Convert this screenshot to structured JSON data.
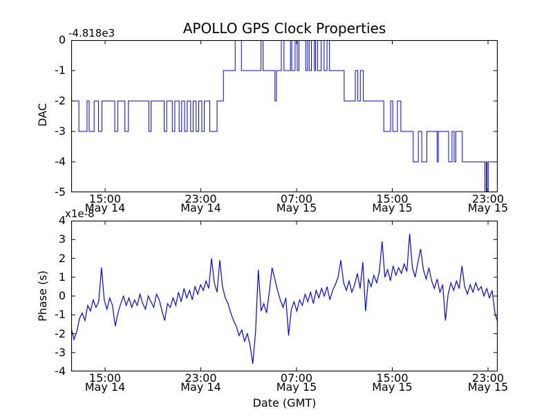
{
  "figure": {
    "title": "APOLLO GPS Clock Properties",
    "background": "#ffffff",
    "frame_color": "#000000"
  },
  "x_axis": {
    "label": "Date (GMT)",
    "range_hours_from_may14_0000": [
      12.17,
      47.81
    ],
    "ticks": [
      {
        "hour": 15,
        "time": "15:00",
        "date": "May 14"
      },
      {
        "hour": 23,
        "time": "23:00",
        "date": "May 14"
      },
      {
        "hour": 31,
        "time": "07:00",
        "date": "May 15"
      },
      {
        "hour": 39,
        "time": "15:00",
        "date": "May 15"
      },
      {
        "hour": 47,
        "time": "23:00",
        "date": "May 15"
      }
    ]
  },
  "chart_data": [
    {
      "type": "line",
      "style": "step",
      "series_name": "DAC",
      "ylabel": "DAC",
      "offset_text": "-4.818e3",
      "ylim": [
        -5,
        0
      ],
      "yticks": [
        0,
        -1,
        -2,
        -3,
        -4,
        -5
      ],
      "line_color": "#0000ff",
      "x_hours_range": [
        12.17,
        47.81
      ],
      "steps_hour_value": [
        [
          12.17,
          -2
        ],
        [
          12.81,
          -3
        ],
        [
          13.49,
          -2
        ],
        [
          13.67,
          -3
        ],
        [
          14.09,
          -2
        ],
        [
          14.45,
          -3
        ],
        [
          14.74,
          -2
        ],
        [
          15.81,
          -3
        ],
        [
          16.05,
          -2
        ],
        [
          16.66,
          -3
        ],
        [
          16.95,
          -2
        ],
        [
          18.66,
          -3
        ],
        [
          18.84,
          -2
        ],
        [
          19.94,
          -3
        ],
        [
          20.15,
          -2
        ],
        [
          20.62,
          -3
        ],
        [
          20.83,
          -2
        ],
        [
          21.19,
          -3
        ],
        [
          21.4,
          -2
        ],
        [
          21.65,
          -3
        ],
        [
          21.86,
          -2
        ],
        [
          22.15,
          -3
        ],
        [
          22.36,
          -2
        ],
        [
          22.61,
          -3
        ],
        [
          22.83,
          -2
        ],
        [
          23.08,
          -3
        ],
        [
          23.29,
          -2
        ],
        [
          23.75,
          -3
        ],
        [
          24.36,
          -2
        ],
        [
          24.89,
          -1
        ],
        [
          25.87,
          0
        ],
        [
          26.4,
          -1
        ],
        [
          28.03,
          0
        ],
        [
          28.2,
          -1
        ],
        [
          29.2,
          -2
        ],
        [
          29.32,
          -1
        ],
        [
          29.73,
          0
        ],
        [
          29.95,
          -1
        ],
        [
          30.49,
          0
        ],
        [
          30.6,
          -1
        ],
        [
          30.88,
          0
        ],
        [
          31.06,
          -1
        ],
        [
          31.2,
          0
        ],
        [
          31.77,
          -1
        ],
        [
          31.92,
          0
        ],
        [
          32.06,
          -1
        ],
        [
          32.24,
          0
        ],
        [
          32.49,
          -1
        ],
        [
          32.59,
          0
        ],
        [
          32.77,
          -1
        ],
        [
          33.06,
          0
        ],
        [
          33.3,
          -1
        ],
        [
          33.55,
          0
        ],
        [
          33.75,
          -1
        ],
        [
          34.98,
          -2
        ],
        [
          35.91,
          -1
        ],
        [
          36.12,
          -2
        ],
        [
          36.33,
          -1
        ],
        [
          36.58,
          -2
        ],
        [
          38.29,
          -3
        ],
        [
          38.86,
          -2
        ],
        [
          39.04,
          -3
        ],
        [
          39.43,
          -2
        ],
        [
          39.72,
          -3
        ],
        [
          40.75,
          -4
        ],
        [
          41.18,
          -3
        ],
        [
          41.46,
          -4
        ],
        [
          41.89,
          -3
        ],
        [
          42.75,
          -4
        ],
        [
          42.85,
          -3
        ],
        [
          43.71,
          -4
        ],
        [
          43.99,
          -3
        ],
        [
          44.17,
          -4
        ],
        [
          44.31,
          -3
        ],
        [
          44.85,
          -4
        ],
        [
          46.74,
          -5
        ],
        [
          46.85,
          -4
        ],
        [
          46.92,
          -5
        ],
        [
          47.02,
          -4
        ]
      ]
    },
    {
      "type": "line",
      "series_name": "Phase",
      "ylabel": "Phase (s)",
      "scale_text": "x1e-8",
      "ylim": [
        -4,
        4
      ],
      "yticks": [
        4,
        3,
        2,
        1,
        0,
        -1,
        -2,
        -3,
        -4
      ],
      "line_color": "#0000ff",
      "x_hours_range": [
        12.17,
        47.81
      ],
      "values_1e8_s": [
        -1.7,
        -2.3,
        -1.9,
        -1.2,
        -0.9,
        -1.3,
        -0.5,
        -0.8,
        -0.2,
        -0.6,
        -0.3,
        1.5,
        -0.2,
        -0.7,
        -0.1,
        -0.5,
        -1.6,
        -0.9,
        -0.4,
        0.0,
        -0.5,
        -0.1,
        -0.6,
        -0.2,
        -0.5,
        0.1,
        -0.4,
        -0.7,
        0.0,
        -0.3,
        -0.6,
        0.1,
        -0.2,
        -0.8,
        -1.3,
        -0.4,
        -0.6,
        -0.1,
        -0.5,
        0.2,
        -0.3,
        0.4,
        -0.1,
        0.3,
        -0.2,
        0.5,
        0.1,
        0.6,
        0.3,
        0.8,
        0.4,
        2.0,
        0.7,
        0.2,
        1.9,
        0.5,
        -0.1,
        -0.4,
        -0.9,
        -1.3,
        -1.6,
        -2.1,
        -1.8,
        -2.4,
        -2.0,
        -2.6,
        -3.6,
        -1.9,
        1.4,
        -0.8,
        -0.4,
        -0.9,
        0.2,
        1.5,
        0.9,
        0.3,
        -0.2,
        -0.6,
        -0.1,
        -2.1,
        -0.7,
        -0.3,
        -0.8,
        -0.2,
        -0.5,
        0.1,
        -0.3,
        0.2,
        -0.4,
        0.3,
        -0.1,
        0.4,
        0.0,
        0.5,
        -0.2,
        0.3,
        0.6,
        1.0,
        1.9,
        0.7,
        0.3,
        0.8,
        0.2,
        0.6,
        1.2,
        0.4,
        1.8,
        -0.8,
        0.9,
        0.5,
        1.1,
        0.7,
        1.3,
        2.9,
        1.0,
        1.4,
        0.8,
        1.6,
        1.1,
        1.5,
        1.2,
        1.7,
        1.3,
        3.3,
        1.5,
        1.0,
        1.8,
        2.5,
        1.4,
        0.9,
        1.5,
        0.8,
        0.4,
        0.9,
        0.2,
        0.6,
        -1.3,
        0.1,
        0.7,
        0.3,
        0.8,
        0.4,
        1.6,
        0.5,
        0.1,
        0.6,
        0.2,
        0.7,
        0.3,
        0.5,
        0.0,
        0.4,
        -0.1,
        0.3,
        -0.9,
        -1.4
      ]
    }
  ]
}
